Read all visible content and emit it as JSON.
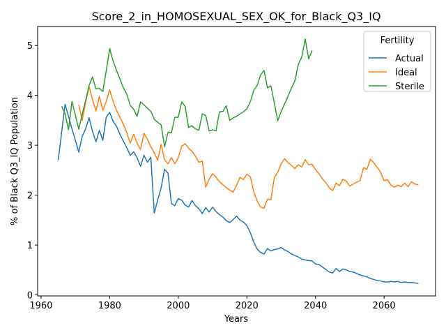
{
  "chart_data": {
    "type": "line",
    "title": "Score_2_in_HOMOSEXUAL_SEX_OK_for_Black_Q3_IQ",
    "xlabel": "Years",
    "ylabel": "% of Black Q3_IQ Population",
    "xlim": [
      1959,
      2075
    ],
    "ylim": [
      -0.02,
      5.38
    ],
    "xticks": [
      1960,
      1980,
      2000,
      2020,
      2040,
      2060
    ],
    "yticks": [
      0,
      1,
      2,
      3,
      4,
      5
    ],
    "grid": false,
    "legend": {
      "title": "Fertility",
      "placement": "top-right"
    },
    "series": [
      {
        "name": "Actual",
        "color": "#1f77b4",
        "points": [
          [
            1965,
            2.7
          ],
          [
            1967,
            3.82
          ],
          [
            1968,
            3.58
          ],
          [
            1969,
            3.33
          ],
          [
            1970,
            3.1
          ],
          [
            1971,
            2.86
          ],
          [
            1972,
            3.18
          ],
          [
            1973,
            3.33
          ],
          [
            1974,
            3.55
          ],
          [
            1975,
            3.28
          ],
          [
            1976,
            3.07
          ],
          [
            1977,
            3.3
          ],
          [
            1978,
            3.1
          ],
          [
            1979,
            3.56
          ],
          [
            1980,
            3.66
          ],
          [
            1981,
            3.48
          ],
          [
            1982,
            3.38
          ],
          [
            1983,
            3.22
          ],
          [
            1984,
            3.08
          ],
          [
            1985,
            2.95
          ],
          [
            1986,
            2.8
          ],
          [
            1987,
            2.87
          ],
          [
            1988,
            2.75
          ],
          [
            1989,
            2.58
          ],
          [
            1990,
            2.8
          ],
          [
            1991,
            2.66
          ],
          [
            1992,
            2.76
          ],
          [
            1993,
            1.64
          ],
          [
            1994,
            1.9
          ],
          [
            1995,
            2.15
          ],
          [
            1996,
            2.52
          ],
          [
            1997,
            2.44
          ],
          [
            1998,
            1.83
          ],
          [
            1999,
            1.79
          ],
          [
            2000,
            1.93
          ],
          [
            2001,
            1.9
          ],
          [
            2002,
            1.8
          ],
          [
            2003,
            1.76
          ],
          [
            2004,
            1.89
          ],
          [
            2005,
            1.79
          ],
          [
            2006,
            1.73
          ],
          [
            2007,
            1.63
          ],
          [
            2008,
            1.75
          ],
          [
            2009,
            1.66
          ],
          [
            2010,
            1.76
          ],
          [
            2011,
            1.67
          ],
          [
            2012,
            1.61
          ],
          [
            2013,
            1.56
          ],
          [
            2014,
            1.49
          ],
          [
            2015,
            1.45
          ],
          [
            2016,
            1.51
          ],
          [
            2017,
            1.58
          ],
          [
            2018,
            1.5
          ],
          [
            2019,
            1.46
          ],
          [
            2020,
            1.39
          ],
          [
            2021,
            1.25
          ],
          [
            2022,
            1.06
          ],
          [
            2023,
            0.92
          ],
          [
            2024,
            0.85
          ],
          [
            2025,
            0.82
          ],
          [
            2026,
            0.93
          ],
          [
            2027,
            0.88
          ],
          [
            2028,
            0.91
          ],
          [
            2029,
            0.92
          ],
          [
            2030,
            0.95
          ],
          [
            2031,
            0.9
          ],
          [
            2032,
            0.87
          ],
          [
            2033,
            0.82
          ],
          [
            2034,
            0.79
          ],
          [
            2035,
            0.76
          ],
          [
            2036,
            0.72
          ],
          [
            2037,
            0.7
          ],
          [
            2038,
            0.69
          ],
          [
            2039,
            0.68
          ],
          [
            2040,
            0.62
          ],
          [
            2041,
            0.61
          ],
          [
            2042,
            0.56
          ],
          [
            2043,
            0.51
          ],
          [
            2044,
            0.46
          ],
          [
            2045,
            0.44
          ],
          [
            2046,
            0.53
          ],
          [
            2047,
            0.47
          ],
          [
            2048,
            0.52
          ],
          [
            2049,
            0.5
          ],
          [
            2050,
            0.47
          ],
          [
            2051,
            0.46
          ],
          [
            2052,
            0.43
          ],
          [
            2053,
            0.4
          ],
          [
            2054,
            0.38
          ],
          [
            2055,
            0.36
          ],
          [
            2056,
            0.33
          ],
          [
            2057,
            0.31
          ],
          [
            2058,
            0.29
          ],
          [
            2059,
            0.28
          ],
          [
            2060,
            0.26
          ],
          [
            2061,
            0.26
          ],
          [
            2062,
            0.27
          ],
          [
            2063,
            0.26
          ],
          [
            2064,
            0.27
          ],
          [
            2065,
            0.25
          ],
          [
            2066,
            0.26
          ],
          [
            2067,
            0.25
          ],
          [
            2068,
            0.25
          ],
          [
            2069,
            0.24
          ],
          [
            2070,
            0.23
          ]
        ]
      },
      {
        "name": "Ideal",
        "color": "#ff7f0e",
        "points": [
          [
            1971,
            3.81
          ],
          [
            1972,
            3.5
          ],
          [
            1973,
            3.86
          ],
          [
            1974,
            4.18
          ],
          [
            1975,
            3.91
          ],
          [
            1976,
            3.69
          ],
          [
            1977,
            3.98
          ],
          [
            1978,
            3.7
          ],
          [
            1979,
            3.88
          ],
          [
            1980,
            4.11
          ],
          [
            1981,
            3.88
          ],
          [
            1982,
            3.7
          ],
          [
            1983,
            3.56
          ],
          [
            1984,
            3.42
          ],
          [
            1985,
            3.25
          ],
          [
            1986,
            3.04
          ],
          [
            1987,
            3.22
          ],
          [
            1988,
            3.04
          ],
          [
            1989,
            2.92
          ],
          [
            1990,
            3.24
          ],
          [
            1991,
            3.12
          ],
          [
            1992,
            2.97
          ],
          [
            1993,
            2.85
          ],
          [
            1994,
            2.7
          ],
          [
            1995,
            3.02
          ],
          [
            1996,
            2.71
          ],
          [
            1997,
            2.63
          ],
          [
            1998,
            2.75
          ],
          [
            1999,
            2.63
          ],
          [
            2000,
            2.75
          ],
          [
            2001,
            2.98
          ],
          [
            2002,
            3.03
          ],
          [
            2003,
            2.94
          ],
          [
            2004,
            2.88
          ],
          [
            2005,
            2.78
          ],
          [
            2006,
            2.66
          ],
          [
            2007,
            2.68
          ],
          [
            2008,
            2.16
          ],
          [
            2009,
            2.32
          ],
          [
            2010,
            2.43
          ],
          [
            2011,
            2.36
          ],
          [
            2012,
            2.27
          ],
          [
            2013,
            2.21
          ],
          [
            2014,
            2.15
          ],
          [
            2015,
            2.1
          ],
          [
            2016,
            2.06
          ],
          [
            2017,
            2.2
          ],
          [
            2018,
            2.36
          ],
          [
            2019,
            2.31
          ],
          [
            2020,
            2.42
          ],
          [
            2021,
            2.37
          ],
          [
            2022,
            2.07
          ],
          [
            2023,
            1.88
          ],
          [
            2024,
            1.76
          ],
          [
            2025,
            1.74
          ],
          [
            2026,
            1.92
          ],
          [
            2027,
            1.91
          ],
          [
            2028,
            2.35
          ],
          [
            2029,
            2.46
          ],
          [
            2030,
            2.63
          ],
          [
            2031,
            2.73
          ],
          [
            2032,
            2.65
          ],
          [
            2033,
            2.6
          ],
          [
            2034,
            2.53
          ],
          [
            2035,
            2.61
          ],
          [
            2036,
            2.56
          ],
          [
            2037,
            2.71
          ],
          [
            2038,
            2.61
          ],
          [
            2039,
            2.62
          ],
          [
            2040,
            2.51
          ],
          [
            2041,
            2.43
          ],
          [
            2042,
            2.33
          ],
          [
            2043,
            2.25
          ],
          [
            2044,
            2.15
          ],
          [
            2045,
            2.09
          ],
          [
            2046,
            2.24
          ],
          [
            2047,
            2.19
          ],
          [
            2048,
            2.32
          ],
          [
            2049,
            2.28
          ],
          [
            2050,
            2.18
          ],
          [
            2051,
            2.22
          ],
          [
            2052,
            2.26
          ],
          [
            2053,
            2.29
          ],
          [
            2054,
            2.55
          ],
          [
            2055,
            2.52
          ],
          [
            2056,
            2.72
          ],
          [
            2057,
            2.65
          ],
          [
            2058,
            2.56
          ],
          [
            2059,
            2.46
          ],
          [
            2060,
            2.29
          ],
          [
            2061,
            2.31
          ],
          [
            2062,
            2.2
          ],
          [
            2063,
            2.16
          ],
          [
            2064,
            2.2
          ],
          [
            2065,
            2.17
          ],
          [
            2066,
            2.24
          ],
          [
            2067,
            2.17
          ],
          [
            2068,
            2.27
          ],
          [
            2069,
            2.22
          ],
          [
            2070,
            2.21
          ]
        ]
      },
      {
        "name": "Sterile",
        "color": "#2ca02c",
        "points": [
          [
            1966,
            3.78
          ],
          [
            1967,
            3.63
          ],
          [
            1968,
            3.31
          ],
          [
            1969,
            3.88
          ],
          [
            1970,
            3.6
          ],
          [
            1971,
            3.32
          ],
          [
            1972,
            3.62
          ],
          [
            1973,
            3.9
          ],
          [
            1974,
            4.2
          ],
          [
            1975,
            4.37
          ],
          [
            1976,
            4.13
          ],
          [
            1977,
            4.14
          ],
          [
            1978,
            4.08
          ],
          [
            1979,
            4.49
          ],
          [
            1980,
            4.94
          ],
          [
            1981,
            4.69
          ],
          [
            1982,
            4.5
          ],
          [
            1983,
            4.33
          ],
          [
            1984,
            4.15
          ],
          [
            1985,
            4.02
          ],
          [
            1986,
            3.8
          ],
          [
            1987,
            3.72
          ],
          [
            1988,
            3.58
          ],
          [
            1989,
            3.87
          ],
          [
            1990,
            3.81
          ],
          [
            1991,
            3.74
          ],
          [
            1992,
            3.68
          ],
          [
            1993,
            3.52
          ],
          [
            1994,
            3.46
          ],
          [
            1995,
            3.41
          ],
          [
            1996,
            2.97
          ],
          [
            1997,
            3.26
          ],
          [
            1998,
            3.25
          ],
          [
            1999,
            3.56
          ],
          [
            2000,
            3.56
          ],
          [
            2001,
            3.87
          ],
          [
            2002,
            3.78
          ],
          [
            2003,
            3.36
          ],
          [
            2004,
            3.39
          ],
          [
            2005,
            3.33
          ],
          [
            2006,
            3.3
          ],
          [
            2007,
            3.63
          ],
          [
            2008,
            3.6
          ],
          [
            2009,
            3.29
          ],
          [
            2010,
            3.31
          ],
          [
            2011,
            3.29
          ],
          [
            2012,
            3.67
          ],
          [
            2013,
            3.68
          ],
          [
            2014,
            3.79
          ],
          [
            2015,
            3.5
          ],
          [
            2016,
            3.55
          ],
          [
            2017,
            3.58
          ],
          [
            2018,
            3.63
          ],
          [
            2019,
            3.67
          ],
          [
            2020,
            3.73
          ],
          [
            2021,
            3.87
          ],
          [
            2022,
            4.1
          ],
          [
            2023,
            4.2
          ],
          [
            2024,
            4.41
          ],
          [
            2025,
            4.5
          ],
          [
            2026,
            4.15
          ],
          [
            2027,
            4.19
          ],
          [
            2028,
            3.85
          ],
          [
            2029,
            3.49
          ],
          [
            2030,
            3.68
          ],
          [
            2031,
            3.83
          ],
          [
            2032,
            3.98
          ],
          [
            2033,
            4.15
          ],
          [
            2034,
            4.29
          ],
          [
            2035,
            4.62
          ],
          [
            2036,
            4.77
          ],
          [
            2037,
            5.13
          ],
          [
            2038,
            4.73
          ],
          [
            2039,
            4.9
          ]
        ]
      }
    ]
  }
}
